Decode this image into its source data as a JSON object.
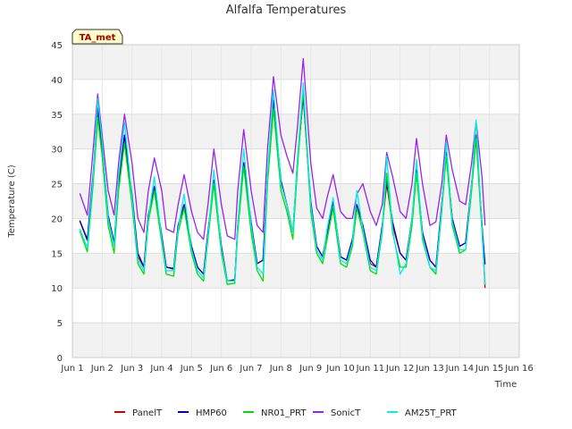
{
  "chart_data": {
    "type": "line",
    "title": "Alfalfa Temperatures",
    "xlabel": "Time",
    "ylabel": "Temperature (C)",
    "station_label": "TA_met",
    "ylim": [
      0,
      45
    ],
    "yticks": [
      0,
      5,
      10,
      15,
      20,
      25,
      30,
      35,
      40,
      45
    ],
    "xlim": [
      1,
      16
    ],
    "xticks": [
      1,
      2,
      3,
      4,
      5,
      6,
      7,
      8,
      9,
      10,
      11,
      12,
      13,
      14,
      15,
      16
    ],
    "xtick_labels": [
      "Jun 1",
      "Jun 2",
      "Jun 3",
      "Jun 4",
      "Jun 5",
      "Jun 6",
      "Jun 7",
      "Jun 8",
      "Jun 9",
      "Jun 10",
      "Jun 11",
      "Jun 12",
      "Jun 13",
      "Jun 14",
      "Jun 15",
      "Jun 16"
    ],
    "grid": true,
    "background_bands": true,
    "legend_position": "bottom",
    "series": [
      {
        "name": "PanelT",
        "color": "#cc0000",
        "x": [
          1.25,
          1.5,
          1.7,
          1.85,
          2.0,
          2.2,
          2.4,
          2.55,
          2.75,
          3.0,
          3.2,
          3.4,
          3.55,
          3.75,
          4.0,
          4.15,
          4.4,
          4.55,
          4.75,
          5.0,
          5.2,
          5.4,
          5.55,
          5.75,
          6.0,
          6.2,
          6.45,
          6.55,
          6.75,
          7.0,
          7.2,
          7.4,
          7.55,
          7.75,
          8.0,
          8.2,
          8.4,
          8.55,
          8.75,
          9.0,
          9.2,
          9.4,
          9.55,
          9.75,
          10.0,
          10.2,
          10.4,
          10.55,
          10.75,
          11.0,
          11.2,
          11.4,
          11.55,
          11.75,
          12.0,
          12.2,
          12.4,
          12.55,
          12.75,
          13.0,
          13.2,
          13.4,
          13.55,
          13.75,
          14.0,
          14.2,
          14.4,
          14.55,
          14.75,
          14.85
        ],
        "values": [
          19.6,
          16.8,
          26.0,
          35.7,
          30.0,
          20.0,
          16.0,
          25.0,
          31.8,
          23.0,
          14.5,
          13.0,
          20.5,
          24.4,
          17.5,
          13.0,
          12.7,
          19.0,
          22.0,
          16.0,
          13.0,
          12.0,
          18.0,
          25.5,
          16.0,
          11.0,
          11.0,
          19.0,
          28.0,
          19.0,
          13.5,
          14.0,
          26.0,
          36.5,
          25.0,
          22.0,
          18.0,
          28.0,
          37.5,
          22.0,
          16.0,
          14.5,
          18.0,
          22.5,
          14.5,
          14.0,
          17.0,
          22.0,
          19.0,
          13.5,
          13.0,
          19.0,
          25.0,
          19.0,
          15.0,
          14.0,
          20.0,
          27.0,
          18.0,
          14.0,
          13.0,
          22.0,
          29.5,
          20.0,
          16.0,
          16.5,
          25.0,
          32.0,
          19.0,
          10.0
        ]
      },
      {
        "name": "HMP60",
        "color": "#0000cc",
        "x": [
          1.25,
          1.5,
          1.7,
          1.85,
          2.0,
          2.2,
          2.4,
          2.55,
          2.75,
          3.0,
          3.2,
          3.4,
          3.55,
          3.75,
          4.0,
          4.15,
          4.4,
          4.55,
          4.75,
          5.0,
          5.2,
          5.4,
          5.55,
          5.75,
          6.0,
          6.2,
          6.45,
          6.55,
          6.75,
          7.0,
          7.2,
          7.4,
          7.55,
          7.75,
          8.0,
          8.2,
          8.4,
          8.55,
          8.75,
          9.0,
          9.2,
          9.4,
          9.55,
          9.75,
          10.0,
          10.2,
          10.4,
          10.55,
          10.75,
          11.0,
          11.2,
          11.4,
          11.55,
          11.75,
          12.0,
          12.2,
          12.4,
          12.55,
          12.75,
          13.0,
          13.2,
          13.4,
          13.55,
          13.75,
          14.0,
          14.2,
          14.4,
          14.55,
          14.75,
          14.85
        ],
        "values": [
          19.7,
          17.0,
          26.5,
          35.9,
          30.5,
          20.5,
          16.5,
          25.5,
          32.0,
          23.5,
          15.0,
          13.0,
          20.5,
          24.6,
          17.5,
          13.0,
          12.8,
          19.0,
          22.0,
          16.0,
          13.0,
          12.0,
          18.0,
          25.5,
          16.0,
          11.0,
          11.2,
          19.0,
          28.0,
          19.5,
          13.5,
          14.0,
          26.0,
          37.0,
          25.5,
          22.0,
          18.0,
          28.0,
          37.7,
          22.5,
          16.0,
          14.5,
          18.0,
          22.5,
          14.5,
          14.0,
          17.0,
          22.0,
          19.0,
          14.0,
          13.0,
          19.0,
          25.5,
          19.5,
          15.0,
          14.0,
          20.0,
          27.0,
          18.0,
          14.0,
          13.0,
          22.0,
          29.5,
          20.0,
          16.0,
          16.5,
          25.0,
          32.0,
          19.0,
          13.4
        ]
      },
      {
        "name": "NR01_PRT",
        "color": "#00dd00",
        "x": [
          1.25,
          1.5,
          1.7,
          1.85,
          2.0,
          2.2,
          2.4,
          2.55,
          2.75,
          3.0,
          3.2,
          3.4,
          3.55,
          3.75,
          4.0,
          4.15,
          4.4,
          4.55,
          4.75,
          5.0,
          5.2,
          5.4,
          5.55,
          5.75,
          6.0,
          6.2,
          6.45,
          6.55,
          6.75,
          7.0,
          7.2,
          7.4,
          7.55,
          7.75,
          8.0,
          8.2,
          8.4,
          8.55,
          8.75,
          9.0,
          9.2,
          9.4,
          9.55,
          9.75,
          10.0,
          10.2,
          10.4,
          10.55,
          10.75,
          11.0,
          11.2,
          11.4,
          11.55,
          11.75,
          12.0,
          12.2,
          12.4,
          12.55,
          12.75,
          13.0,
          13.2,
          13.4,
          13.55,
          13.75,
          14.0,
          14.2,
          14.4,
          14.55,
          14.75,
          14.85
        ],
        "values": [
          18.2,
          15.2,
          25.0,
          34.5,
          29.0,
          19.0,
          15.0,
          24.0,
          30.8,
          22.0,
          13.5,
          12.0,
          19.5,
          24.0,
          16.5,
          12.0,
          11.7,
          18.0,
          21.5,
          15.0,
          12.0,
          11.0,
          17.0,
          25.0,
          15.0,
          10.5,
          10.7,
          18.0,
          27.5,
          18.0,
          12.5,
          11.0,
          25.0,
          35.8,
          24.0,
          21.0,
          17.0,
          27.0,
          38.5,
          21.0,
          15.0,
          13.5,
          17.0,
          21.5,
          13.5,
          13.0,
          16.0,
          21.5,
          18.0,
          12.5,
          12.0,
          18.0,
          26.5,
          18.0,
          13.0,
          13.0,
          19.0,
          26.5,
          17.0,
          13.0,
          12.0,
          21.0,
          29.0,
          19.0,
          15.0,
          15.5,
          24.0,
          31.5,
          18.0,
          10.5
        ]
      },
      {
        "name": "SonicT",
        "color": "#9922ee",
        "x": [
          1.25,
          1.5,
          1.7,
          1.85,
          2.0,
          2.2,
          2.4,
          2.55,
          2.75,
          3.0,
          3.2,
          3.4,
          3.55,
          3.75,
          4.0,
          4.15,
          4.4,
          4.55,
          4.75,
          5.0,
          5.2,
          5.4,
          5.55,
          5.75,
          6.0,
          6.2,
          6.45,
          6.55,
          6.75,
          7.0,
          7.2,
          7.4,
          7.55,
          7.75,
          8.0,
          8.2,
          8.4,
          8.55,
          8.75,
          9.0,
          9.2,
          9.4,
          9.55,
          9.75,
          10.0,
          10.2,
          10.4,
          10.55,
          10.75,
          11.0,
          11.2,
          11.4,
          11.55,
          11.75,
          12.0,
          12.2,
          12.4,
          12.55,
          12.75,
          13.0,
          13.2,
          13.4,
          13.55,
          13.75,
          14.0,
          14.2,
          14.4,
          14.55,
          14.75,
          14.85
        ],
        "values": [
          23.6,
          20.5,
          30.0,
          37.9,
          32.0,
          24.0,
          20.5,
          28.0,
          35.0,
          28.0,
          20.0,
          18.0,
          24.0,
          28.7,
          24.0,
          18.5,
          18.0,
          22.0,
          26.3,
          21.0,
          18.0,
          17.0,
          22.0,
          30.0,
          22.0,
          17.5,
          17.0,
          24.0,
          32.8,
          24.0,
          19.0,
          18.0,
          30.0,
          40.4,
          32.0,
          29.0,
          26.5,
          33.0,
          43.0,
          28.0,
          21.5,
          20.0,
          23.0,
          26.3,
          21.0,
          20.0,
          20.0,
          23.5,
          25.0,
          21.0,
          19.0,
          22.0,
          29.5,
          26.0,
          21.0,
          20.0,
          25.0,
          31.5,
          25.0,
          19.0,
          19.5,
          25.0,
          32.0,
          27.0,
          22.5,
          22.0,
          28.0,
          34.0,
          26.0,
          19.0
        ]
      },
      {
        "name": "AM25T_PRT",
        "color": "#00eeee",
        "x": [
          1.25,
          1.5,
          1.7,
          1.85,
          2.0,
          2.2,
          2.4,
          2.55,
          2.75,
          3.0,
          3.2,
          3.4,
          3.55,
          3.75,
          4.0,
          4.15,
          4.4,
          4.55,
          4.75,
          5.0,
          5.2,
          5.4,
          5.55,
          5.75,
          6.0,
          6.2,
          6.45,
          6.55,
          6.75,
          7.0,
          7.2,
          7.4,
          7.55,
          7.75,
          8.0,
          8.2,
          8.4,
          8.55,
          8.75,
          9.0,
          9.2,
          9.4,
          9.55,
          9.75,
          10.0,
          10.2,
          10.4,
          10.55,
          10.75,
          11.0,
          11.2,
          11.4,
          11.55,
          11.75,
          12.0,
          12.2,
          12.4,
          12.55,
          12.75,
          13.0,
          13.2,
          13.4,
          13.55,
          13.75,
          14.0,
          14.2,
          14.4,
          14.55,
          14.75,
          14.85
        ],
        "values": [
          18.5,
          15.8,
          26.0,
          37.2,
          31.0,
          20.0,
          16.0,
          26.0,
          33.8,
          23.0,
          14.0,
          12.5,
          20.0,
          26.0,
          17.0,
          12.5,
          12.5,
          18.5,
          23.5,
          15.5,
          12.5,
          11.5,
          17.5,
          27.0,
          15.5,
          11.0,
          11.0,
          19.0,
          30.0,
          19.0,
          13.0,
          12.0,
          26.5,
          38.5,
          25.0,
          22.0,
          18.0,
          28.5,
          39.5,
          22.0,
          15.5,
          14.0,
          18.5,
          23.0,
          14.0,
          13.5,
          16.5,
          24.0,
          18.5,
          13.0,
          12.5,
          18.5,
          29.0,
          18.5,
          12.0,
          13.5,
          20.0,
          28.5,
          17.5,
          13.0,
          12.5,
          21.5,
          31.0,
          19.5,
          15.5,
          15.5,
          25.0,
          34.2,
          18.5,
          10.5
        ]
      }
    ]
  }
}
